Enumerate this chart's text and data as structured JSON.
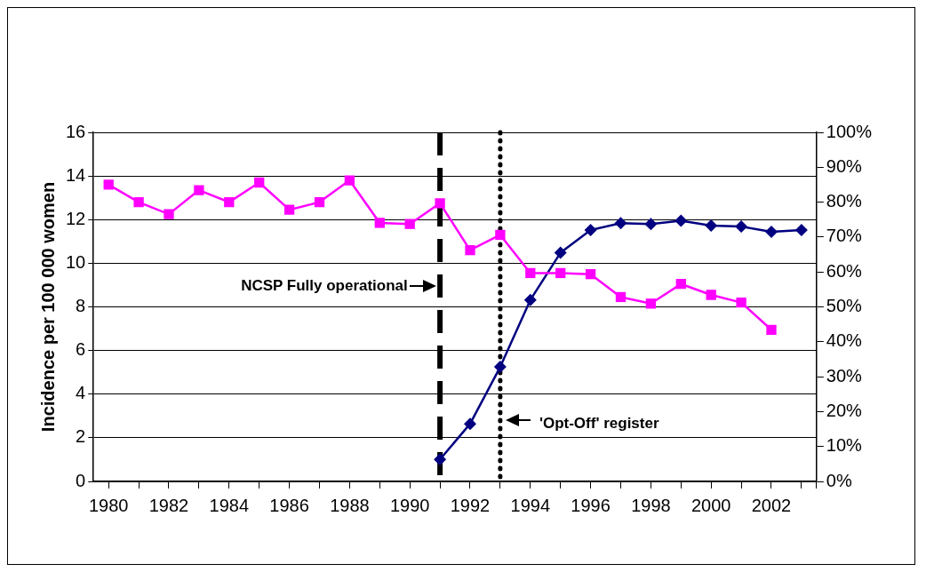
{
  "chart_data": {
    "type": "line",
    "ylabel": "Incidence per 100 000 women",
    "x": [
      1980,
      1981,
      1982,
      1983,
      1984,
      1985,
      1986,
      1987,
      1988,
      1989,
      1990,
      1991,
      1992,
      1993,
      1994,
      1995,
      1996,
      1997,
      1998,
      1999,
      2000,
      2001,
      2002,
      2003
    ],
    "xlim": [
      1979.5,
      2003.5
    ],
    "xticks": [
      1980,
      1982,
      1984,
      1986,
      1988,
      1990,
      1992,
      1994,
      1996,
      1998,
      2000,
      2002
    ],
    "ylim": [
      0,
      16
    ],
    "yticks": [
      0,
      2,
      4,
      6,
      8,
      10,
      12,
      14,
      16
    ],
    "y2lim": [
      0,
      100
    ],
    "y2ticks": [
      {
        "value": 0,
        "label": "0%"
      },
      {
        "value": 10,
        "label": "10%"
      },
      {
        "value": 20,
        "label": "20%"
      },
      {
        "value": 30,
        "label": "30%"
      },
      {
        "value": 40,
        "label": "40%"
      },
      {
        "value": 50,
        "label": "50%"
      },
      {
        "value": 60,
        "label": "60%"
      },
      {
        "value": 70,
        "label": "70%"
      },
      {
        "value": 80,
        "label": "80%"
      },
      {
        "value": 90,
        "label": "90%"
      },
      {
        "value": 100,
        "label": "100%"
      }
    ],
    "series": [
      {
        "color": "#ff00ff",
        "marker": "square",
        "values": [
          13.6,
          12.8,
          12.25,
          13.35,
          12.8,
          13.7,
          12.45,
          12.8,
          13.8,
          11.85,
          11.8,
          12.75,
          10.6,
          11.3,
          9.55,
          9.55,
          9.5,
          8.45,
          8.15,
          9.05,
          8.55,
          8.2,
          6.95,
          null
        ]
      },
      {
        "color": "#000080",
        "marker": "diamond",
        "axis": "y2",
        "values": [
          null,
          null,
          null,
          null,
          null,
          null,
          null,
          null,
          null,
          null,
          null,
          6.3,
          16.5,
          32.8,
          52,
          65.5,
          72,
          74,
          73.7,
          74.7,
          73.3,
          73,
          71.5,
          72
        ]
      }
    ],
    "ref_lines": [
      {
        "axis": "x",
        "value": 1991,
        "label": "NCSP Fully operational",
        "line_style": "dashed"
      },
      {
        "axis": "x",
        "value": 1993,
        "label": "'Opt-Off' register",
        "line_style": "dotted"
      }
    ],
    "grid": "y",
    "legend": false
  }
}
